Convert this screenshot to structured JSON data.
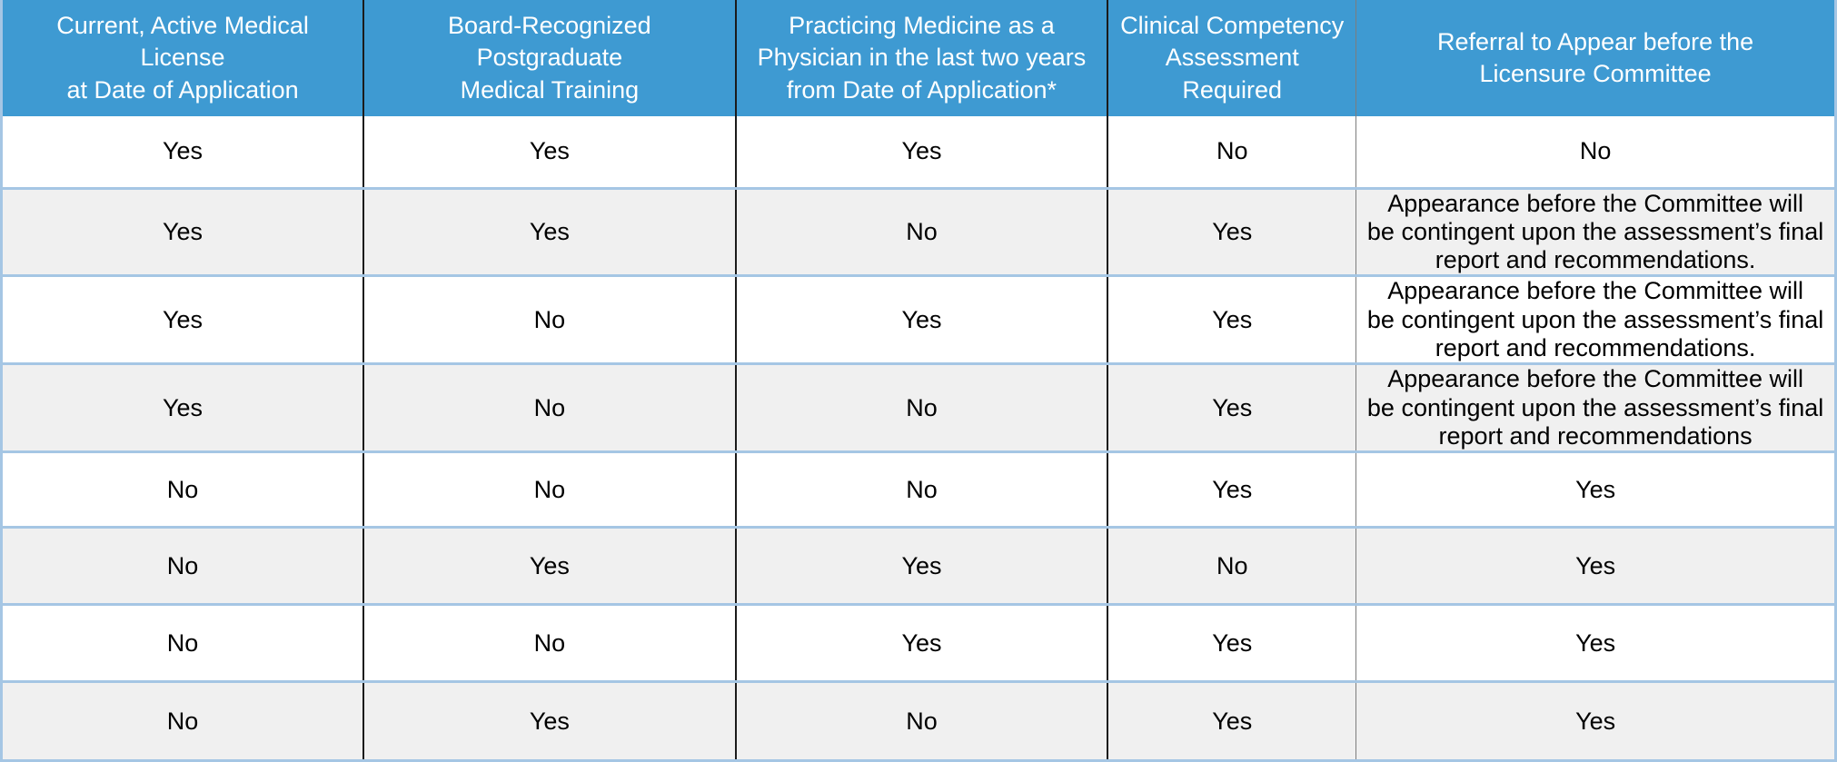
{
  "table": {
    "colors": {
      "header_bg": "#3e9ad2",
      "header_text": "#ffffff",
      "row_bg": "#ffffff",
      "row_alt_bg": "#f0f0f0",
      "grid_blue": "#a5c6e4",
      "grid_black": "#1b1b1b",
      "grid_gray": "#7d7d7d",
      "cell_text": "#000000"
    },
    "columns": [
      "Current, Active Medical License\nat Date of Application",
      "Board-Recognized Postgraduate\nMedical Training",
      "Practicing Medicine as a\nPhysician in the last two years\nfrom Date of Application*",
      "Clinical Competency\nAssessment Required",
      "Referral to Appear before the\nLicensure Committee"
    ],
    "rows": [
      {
        "cells": [
          "Yes",
          "Yes",
          "Yes",
          "No",
          "No"
        ]
      },
      {
        "cells": [
          "Yes",
          "Yes",
          "No",
          "Yes",
          "Appearance before the Committee will\nbe contingent upon the assessment’s final\nreport and recommendations."
        ]
      },
      {
        "cells": [
          "Yes",
          "No",
          "Yes",
          "Yes",
          "Appearance before the Committee will\nbe contingent upon the assessment’s final\nreport and recommendations."
        ]
      },
      {
        "cells": [
          "Yes",
          "No",
          "No",
          "Yes",
          "Appearance before the Committee will\nbe contingent upon the assessment’s final\nreport and recommendations"
        ]
      },
      {
        "cells": [
          "No",
          "No",
          "No",
          "Yes",
          "Yes"
        ]
      },
      {
        "cells": [
          "No",
          "Yes",
          "Yes",
          "No",
          "Yes"
        ]
      },
      {
        "cells": [
          "No",
          "No",
          "Yes",
          "Yes",
          "Yes"
        ]
      },
      {
        "cells": [
          "No",
          "Yes",
          "No",
          "Yes",
          "Yes"
        ]
      }
    ]
  }
}
